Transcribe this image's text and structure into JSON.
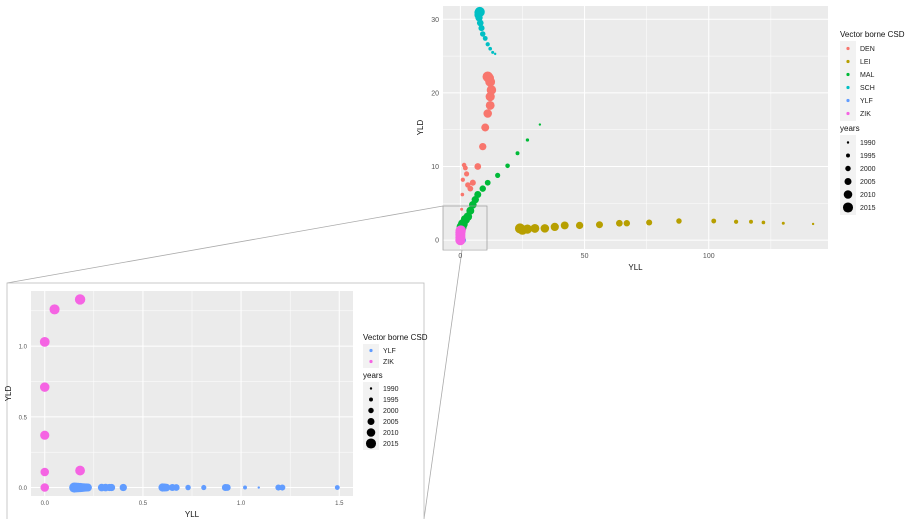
{
  "colors": {
    "DEN": "#F8766D",
    "LEI": "#B79F00",
    "MAL": "#00BA38",
    "SCH": "#00BFC4",
    "YLF": "#619CFF",
    "ZIK": "#F564E3",
    "panel": "#EBEBEB",
    "grid": "#FFFFFF"
  },
  "chart_data": [
    {
      "type": "scatter",
      "title": "",
      "xlabel": "YLL",
      "ylabel": "YLD",
      "xlim": [
        -7,
        148
      ],
      "ylim": [
        -1.2,
        31.8
      ],
      "xticks": [
        0,
        50,
        100
      ],
      "yticks": [
        0,
        10,
        20,
        30
      ],
      "xtick_labels": [
        "0",
        "50",
        "100"
      ],
      "ytick_labels": [
        "0",
        "10",
        "20",
        "30"
      ],
      "grid": true,
      "legend_position": "right",
      "color_legend": {
        "title": "Vector borne CSD",
        "entries": [
          "DEN",
          "LEI",
          "MAL",
          "SCH",
          "YLF",
          "ZIK"
        ]
      },
      "size_legend": {
        "title": "years",
        "entries": [
          "1990",
          "1995",
          "2000",
          "2005",
          "2010",
          "2015"
        ]
      },
      "series": [
        {
          "name": "DEN",
          "points": [
            [
              0.5,
              4.2,
              1992
            ],
            [
              0.8,
              6.2,
              1994
            ],
            [
              1,
              8.2,
              1996
            ],
            [
              1.5,
              10.2,
              1997
            ],
            [
              2,
              9.8,
              1998
            ],
            [
              2.5,
              9,
              1999
            ],
            [
              3,
              7.5,
              2000
            ],
            [
              4,
              7,
              2001
            ],
            [
              5,
              7.8,
              2002
            ],
            [
              7,
              10,
              2004
            ],
            [
              9,
              12.7,
              2006
            ],
            [
              10,
              15.3,
              2008
            ],
            [
              11,
              17.2,
              2010
            ],
            [
              12,
              18.3,
              2011
            ],
            [
              12,
              19.5,
              2012
            ],
            [
              12.5,
              20.4,
              2013
            ],
            [
              12,
              21.5,
              2014
            ],
            [
              11.5,
              22,
              2015
            ],
            [
              11,
              22.2,
              2016
            ]
          ]
        },
        {
          "name": "LEI",
          "points": [
            [
              142,
              2.2,
              1990
            ],
            [
              130,
              2.3,
              1992
            ],
            [
              122,
              2.4,
              1994
            ],
            [
              117,
              2.5,
              1995
            ],
            [
              111,
              2.5,
              1996
            ],
            [
              102,
              2.6,
              1998
            ],
            [
              88,
              2.6,
              2000
            ],
            [
              76,
              2.4,
              2002
            ],
            [
              67,
              2.3,
              2003
            ],
            [
              64,
              2.3,
              2004
            ],
            [
              56,
              2.1,
              2005
            ],
            [
              48,
              2,
              2006
            ],
            [
              42,
              2,
              2008
            ],
            [
              38,
              1.8,
              2009
            ],
            [
              34,
              1.6,
              2010
            ],
            [
              30,
              1.6,
              2011
            ],
            [
              27,
              1.5,
              2012
            ],
            [
              25,
              1.4,
              2014
            ],
            [
              24,
              1.6,
              2015
            ]
          ]
        },
        {
          "name": "MAL",
          "points": [
            [
              32,
              15.7,
              1990
            ],
            [
              27,
              13.6,
              1993
            ],
            [
              23,
              11.8,
              1995
            ],
            [
              19,
              10.1,
              1997
            ],
            [
              15,
              8.8,
              1999
            ],
            [
              11,
              7.8,
              2001
            ],
            [
              9,
              7,
              2003
            ],
            [
              7,
              6.2,
              2005
            ],
            [
              6,
              5.5,
              2006
            ],
            [
              5,
              4.8,
              2007
            ],
            [
              4,
              4,
              2008
            ],
            [
              3,
              3.2,
              2010
            ],
            [
              2,
              2.8,
              2012
            ],
            [
              1,
              2.2,
              2014
            ],
            [
              0.5,
              1.8,
              2015
            ]
          ]
        },
        {
          "name": "SCH",
          "points": [
            [
              14,
              25.3,
              1990
            ],
            [
              13,
              25.5,
              1992
            ],
            [
              12,
              26,
              1994
            ],
            [
              11,
              26.6,
              1996
            ],
            [
              10,
              27.4,
              1998
            ],
            [
              9,
              28,
              2000
            ],
            [
              8.5,
              28.8,
              2002
            ],
            [
              8,
              29.5,
              2004
            ],
            [
              7.5,
              30.2,
              2006
            ],
            [
              7.3,
              30.6,
              2009
            ],
            [
              7.5,
              30.9,
              2012
            ],
            [
              7.8,
              31,
              2015
            ]
          ]
        },
        {
          "name": "YLF",
          "points": [
            [
              0.5,
              0,
              2005
            ],
            [
              1.2,
              0,
              2000
            ]
          ]
        },
        {
          "name": "ZIK",
          "points": [
            [
              0,
              0,
              2015
            ],
            [
              0,
              0.37,
              2015
            ],
            [
              0,
              0.71,
              2015
            ],
            [
              0,
              1.03,
              2015
            ],
            [
              0.05,
              1.26,
              2015
            ],
            [
              0.18,
              1.33,
              2015
            ]
          ]
        }
      ]
    },
    {
      "type": "scatter",
      "title": "",
      "xlabel": "YLL",
      "ylabel": "YLD",
      "xlim": [
        -0.07,
        1.57
      ],
      "ylim": [
        -0.06,
        1.39
      ],
      "xticks": [
        0,
        0.5,
        1.0,
        1.5
      ],
      "yticks": [
        0,
        0.5,
        1.0
      ],
      "xtick_labels": [
        "0.0",
        "0.5",
        "1.0",
        "1.5"
      ],
      "ytick_labels": [
        "0.0",
        "0.5",
        "1.0"
      ],
      "grid": true,
      "legend_position": "right",
      "color_legend": {
        "title": "Vector borne CSD",
        "entries": [
          "YLF",
          "ZIK"
        ]
      },
      "size_legend": {
        "title": "years",
        "entries": [
          "1990",
          "1995",
          "2000",
          "2005",
          "2010",
          "2015"
        ]
      },
      "series": [
        {
          "name": "YLF",
          "points": [
            [
              0.15,
              0,
              2015
            ],
            [
              0.16,
              0,
              2014
            ],
            [
              0.17,
              0,
              2013
            ],
            [
              0.18,
              0,
              2012
            ],
            [
              0.19,
              0,
              2011
            ],
            [
              0.2,
              0,
              2010
            ],
            [
              0.21,
              0,
              2009
            ],
            [
              0.22,
              0,
              2008
            ],
            [
              0.29,
              0,
              2007
            ],
            [
              0.31,
              0,
              2007
            ],
            [
              0.33,
              0,
              2006
            ],
            [
              0.34,
              0,
              2006
            ],
            [
              0.4,
              0,
              2006
            ],
            [
              0.6,
              0,
              2009
            ],
            [
              0.61,
              0,
              2008
            ],
            [
              0.62,
              0,
              2007
            ],
            [
              0.65,
              0,
              2005
            ],
            [
              0.67,
              0,
              2004
            ],
            [
              0.73,
              0,
              2000
            ],
            [
              0.81,
              0,
              1999
            ],
            [
              0.92,
              0,
              2005
            ],
            [
              0.93,
              0,
              2004
            ],
            [
              1.02,
              0,
              1995
            ],
            [
              1.09,
              0,
              1990
            ],
            [
              1.19,
              0,
              2002
            ],
            [
              1.21,
              0,
              2002
            ],
            [
              1.49,
              0,
              1998
            ]
          ]
        },
        {
          "name": "ZIK",
          "points": [
            [
              0,
              0,
              2010
            ],
            [
              0,
              0.11,
              2010
            ],
            [
              0,
              0.37,
              2012
            ],
            [
              0,
              0.71,
              2013
            ],
            [
              0,
              1.03,
              2014
            ],
            [
              0.05,
              1.26,
              2015
            ],
            [
              0.18,
              1.33,
              2016
            ],
            [
              0.18,
              0.12,
              2014
            ]
          ]
        }
      ]
    }
  ]
}
